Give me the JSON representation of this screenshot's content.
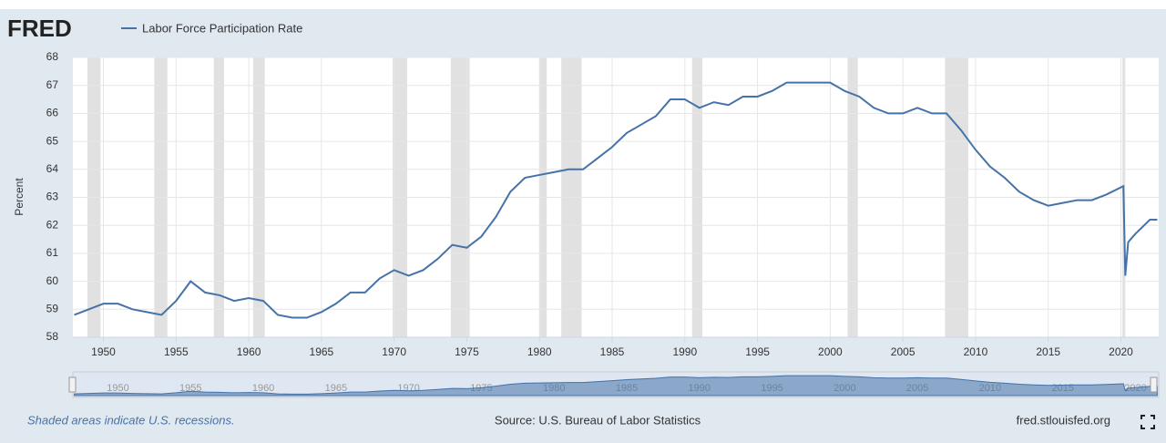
{
  "chart_data": {
    "type": "line",
    "logo": "FRED",
    "ylabel": "Percent",
    "note": "Shaded areas indicate U.S. recessions.",
    "source": "Source: U.S. Bureau of Labor Statistics",
    "site": "fred.stlouisfed.org",
    "x": [
      1948,
      1949,
      1950,
      1951,
      1952,
      1953,
      1954,
      1955,
      1956,
      1957,
      1958,
      1959,
      1960,
      1961,
      1962,
      1963,
      1964,
      1965,
      1966,
      1967,
      1968,
      1969,
      1970,
      1971,
      1972,
      1973,
      1974,
      1975,
      1976,
      1977,
      1978,
      1979,
      1980,
      1981,
      1982,
      1983,
      1984,
      1985,
      1986,
      1987,
      1988,
      1989,
      1990,
      1991,
      1992,
      1993,
      1994,
      1995,
      1996,
      1997,
      1998,
      1999,
      2000,
      2001,
      2002,
      2003,
      2004,
      2005,
      2006,
      2007,
      2008,
      2009,
      2010,
      2011,
      2012,
      2013,
      2014,
      2015,
      2016,
      2017,
      2018,
      2019,
      2020.17,
      2020.3,
      2020.5,
      2021,
      2022,
      2022.5
    ],
    "series": [
      {
        "name": "Labor Force Participation Rate",
        "color": "#4572a7",
        "values": [
          58.8,
          59.0,
          59.2,
          59.2,
          59.0,
          58.9,
          58.8,
          59.3,
          60.0,
          59.6,
          59.5,
          59.3,
          59.4,
          59.3,
          58.8,
          58.7,
          58.7,
          58.9,
          59.2,
          59.6,
          59.6,
          60.1,
          60.4,
          60.2,
          60.4,
          60.8,
          61.3,
          61.2,
          61.6,
          62.3,
          63.2,
          63.7,
          63.8,
          63.9,
          64.0,
          64.0,
          64.4,
          64.8,
          65.3,
          65.6,
          65.9,
          66.5,
          66.5,
          66.2,
          66.4,
          66.3,
          66.6,
          66.6,
          66.8,
          67.1,
          67.1,
          67.1,
          67.1,
          66.8,
          66.6,
          66.2,
          66.0,
          66.0,
          66.2,
          66.0,
          66.0,
          65.4,
          64.7,
          64.1,
          63.7,
          63.2,
          62.9,
          62.7,
          62.8,
          62.9,
          62.9,
          63.1,
          63.4,
          60.2,
          61.4,
          61.7,
          62.2,
          62.2
        ]
      }
    ],
    "recessions": [
      [
        1948.9,
        1949.8
      ],
      [
        1953.5,
        1954.4
      ],
      [
        1957.6,
        1958.3
      ],
      [
        1960.3,
        1961.1
      ],
      [
        1969.9,
        1970.9
      ],
      [
        1973.9,
        1975.2
      ],
      [
        1980.0,
        1980.5
      ],
      [
        1981.5,
        1982.9
      ],
      [
        1990.5,
        1991.2
      ],
      [
        2001.2,
        2001.9
      ],
      [
        2007.9,
        2009.5
      ],
      [
        2020.1,
        2020.3
      ]
    ],
    "xlim": [
      1947.9,
      2022.6
    ],
    "xticks": [
      1950,
      1955,
      1960,
      1965,
      1970,
      1975,
      1980,
      1985,
      1990,
      1995,
      2000,
      2005,
      2010,
      2015,
      2020
    ],
    "ylim": [
      58,
      68
    ],
    "yticks": [
      58,
      59,
      60,
      61,
      62,
      63,
      64,
      65,
      66,
      67,
      68
    ],
    "grid": true
  }
}
